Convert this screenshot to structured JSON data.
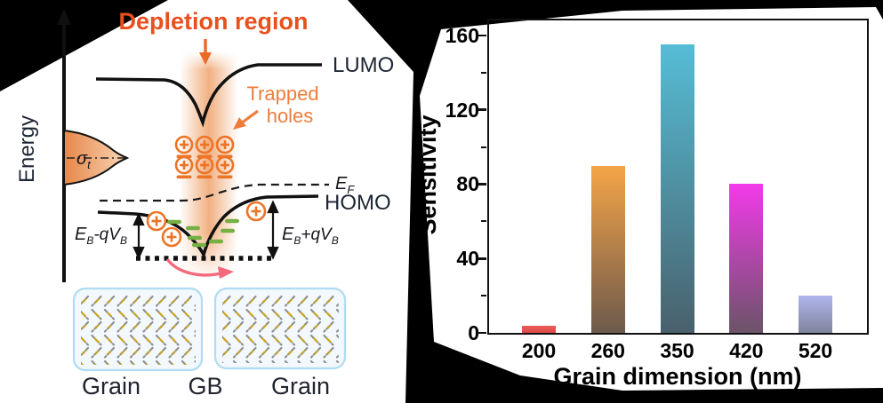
{
  "diagram": {
    "title": "Depletion region",
    "energy_axis_label": "Energy",
    "lumo_label": "LUMO",
    "homo_label": "HOMO",
    "trapped_line1": "Trapped",
    "trapped_line2": "holes",
    "sigma": {
      "base": "σ",
      "sub": "t"
    },
    "fermi": {
      "base": "E",
      "sub": "F"
    },
    "barrier_left": {
      "E": "E",
      "B1": "B",
      "mid": "-q",
      "V": "V",
      "B2": "B"
    },
    "barrier_right": {
      "E": "E",
      "B1": "B",
      "mid": "+q",
      "V": "V",
      "B2": "B"
    },
    "grain_left_label": "Grain",
    "gb_label": "GB",
    "grain_right_label": "Grain",
    "colors": {
      "accent_orange": "#e8501d",
      "symbol_orange": "#ec7426",
      "band_orange": "#efa26b",
      "trap_green": "#76b043",
      "pink_arrow": "#f4697c",
      "grain_box_border": "#aedcf2"
    }
  },
  "chart_data": {
    "type": "bar",
    "title": "",
    "xlabel": "Grain dimension (nm)",
    "ylabel": "Sensitivity",
    "categories": [
      "200",
      "260",
      "350",
      "420",
      "520"
    ],
    "values": [
      4,
      90,
      155,
      80,
      20
    ],
    "yticks": [
      0,
      40,
      80,
      120,
      160
    ],
    "minor_yticks": [
      20,
      60,
      100,
      140
    ],
    "ylim": [
      0,
      170
    ],
    "grid": false,
    "legend_position": "none",
    "bar_colors": [
      {
        "top": "#ec5b55",
        "bottom": "#d94a4a"
      },
      {
        "top": "#f5a447",
        "bottom": "#6d5a4c"
      },
      {
        "top": "#55bdd6",
        "bottom": "#49616c"
      },
      {
        "top": "#f23ae9",
        "bottom": "#6b5468"
      },
      {
        "top": "#b0b5ee",
        "bottom": "#7f859c"
      }
    ]
  }
}
